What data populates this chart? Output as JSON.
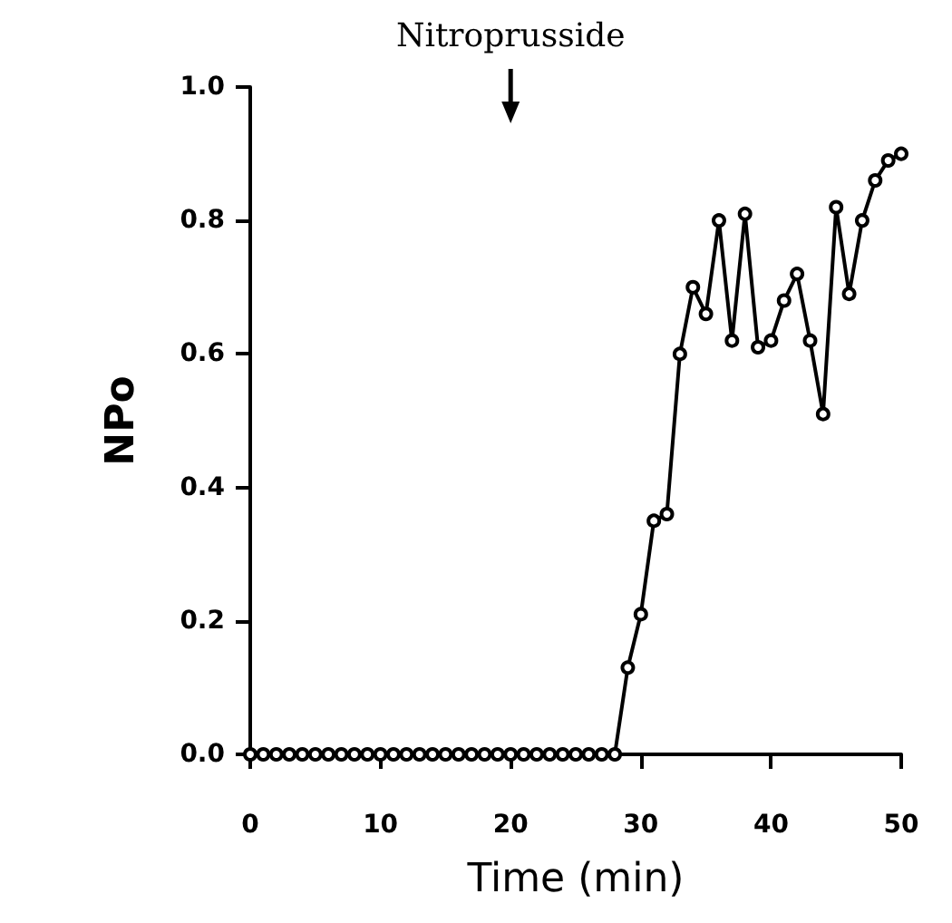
{
  "chart_data": {
    "type": "line",
    "xlabel": "Time (min)",
    "ylabel": "NPo",
    "x": [
      0,
      1,
      2,
      3,
      4,
      5,
      6,
      7,
      8,
      9,
      10,
      11,
      12,
      13,
      14,
      15,
      16,
      17,
      18,
      19,
      20,
      21,
      22,
      23,
      24,
      25,
      26,
      27,
      28,
      29,
      30,
      31,
      32,
      33,
      34,
      35,
      36,
      37,
      38,
      39,
      40,
      41,
      42,
      43,
      44,
      45,
      46,
      47,
      48,
      49,
      50
    ],
    "values": [
      0,
      0,
      0,
      0,
      0,
      0,
      0,
      0,
      0,
      0,
      0,
      0,
      0,
      0,
      0,
      0,
      0,
      0,
      0,
      0,
      0,
      0,
      0,
      0,
      0,
      0,
      0,
      0,
      0,
      0.13,
      0.21,
      0.35,
      0.36,
      0.6,
      0.7,
      0.66,
      0.8,
      0.62,
      0.81,
      0.61,
      0.62,
      0.68,
      0.72,
      0.62,
      0.51,
      0.82,
      0.69,
      0.8,
      0.86,
      0.89,
      0.9
    ],
    "color": "#000000",
    "marker": "circle",
    "line_style": "solid",
    "grid": false,
    "xlim": [
      0,
      50
    ],
    "xticks": [
      0,
      10,
      20,
      30,
      40,
      50
    ],
    "ylim": [
      0,
      1
    ],
    "yticks": [
      {
        "value": 0,
        "label": "0.0"
      },
      {
        "value": 0.2,
        "label": "0.2"
      },
      {
        "value": 0.4,
        "label": "0.4"
      },
      {
        "value": 0.6,
        "label": "0.6"
      },
      {
        "value": 0.8,
        "label": "0.8"
      },
      {
        "value": 1,
        "label": "1.0"
      }
    ],
    "annotations": [
      "Nitroprusside"
    ]
  }
}
